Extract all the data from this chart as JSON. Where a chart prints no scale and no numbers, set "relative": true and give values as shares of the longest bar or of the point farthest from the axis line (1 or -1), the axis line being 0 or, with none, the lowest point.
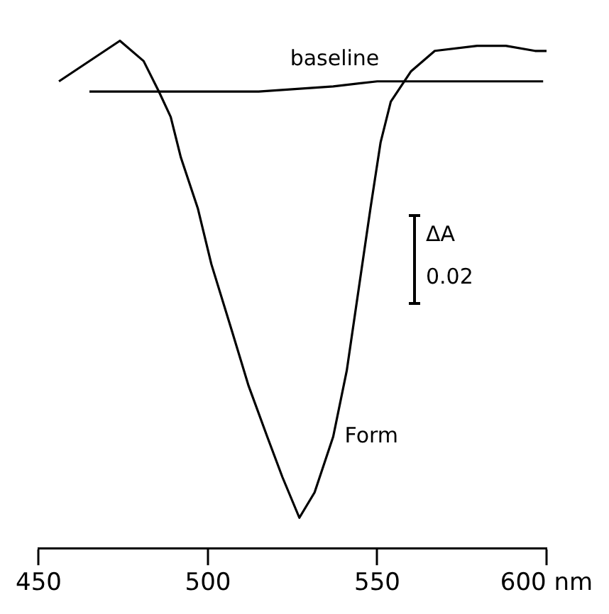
{
  "chart_data": {
    "type": "line",
    "relative": true,
    "xlim": [
      450,
      600
    ],
    "xticks": [
      450,
      500,
      550,
      {
        "value": 600,
        "label": "600 nm"
      }
    ],
    "grid": false,
    "marker": "none",
    "line_style": "solid",
    "annotations": [
      "ΔA",
      "0.02"
    ],
    "series": [
      {
        "name": "Form",
        "color": "#000000",
        "x": [
          456,
          474,
          481,
          485.5,
          489,
          492,
          497,
          501,
          507,
          512,
          517.5,
          522,
          527,
          531.5,
          537,
          541,
          544.5,
          548,
          551,
          554,
          560,
          567,
          579.5,
          588,
          596.6,
          600
        ],
        "values": [
          0.92,
          1.0,
          0.96,
          0.9,
          0.85,
          0.77,
          0.67,
          0.56,
          0.43,
          0.32,
          0.22,
          0.14,
          0.06,
          0.11,
          0.22,
          0.35,
          0.51,
          0.67,
          0.8,
          0.88,
          0.94,
          0.98,
          0.99,
          0.99,
          0.98,
          0.98
        ]
      },
      {
        "name": "baseline",
        "color": "#000000",
        "x": [
          465,
          485.5,
          515,
          537,
          550,
          562,
          584,
          599
        ],
        "values": [
          0.9,
          0.9,
          0.9,
          0.91,
          0.92,
          0.92,
          0.92,
          0.92
        ]
      }
    ]
  }
}
